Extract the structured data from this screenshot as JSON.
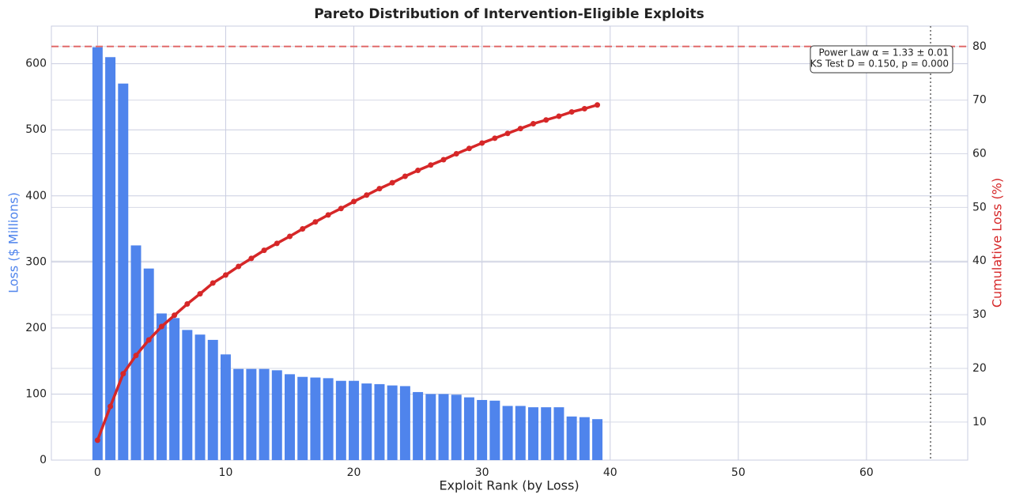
{
  "chart_data": {
    "type": "bar",
    "title": "Pareto Distribution of Intervention-Eligible Exploits",
    "x_label": "Exploit Rank (by Loss)",
    "y_label": "Loss ($ Millions)",
    "y2_label": "Cumulative Loss (%)",
    "x": [
      0,
      1,
      2,
      3,
      4,
      5,
      6,
      7,
      8,
      9,
      10,
      11,
      12,
      13,
      14,
      15,
      16,
      17,
      18,
      19,
      20,
      21,
      22,
      23,
      24,
      25,
      26,
      27,
      28,
      29,
      30,
      31,
      32,
      33,
      34,
      35,
      36,
      37,
      38,
      39
    ],
    "series": [
      {
        "type": "bar",
        "color": "#4f84ec",
        "values": [
          625,
          610,
          570,
          325,
          290,
          222,
          215,
          197,
          190,
          182,
          160,
          138,
          138,
          138,
          136,
          130,
          126,
          125,
          124,
          120,
          120,
          116,
          115,
          113,
          112,
          103,
          100,
          100,
          99,
          95,
          91,
          90,
          82,
          82,
          80,
          80,
          80,
          66,
          65,
          62
        ]
      },
      {
        "type": "line",
        "axis": "y2",
        "color": "#d62728",
        "values": [
          6.6,
          12.9,
          19.0,
          22.4,
          25.3,
          27.8,
          29.9,
          32.0,
          33.9,
          35.9,
          37.4,
          39.0,
          40.5,
          42.0,
          43.3,
          44.6,
          46.0,
          47.3,
          48.6,
          49.8,
          51.1,
          52.3,
          53.5,
          54.6,
          55.8,
          56.9,
          57.9,
          58.9,
          60.0,
          61.0,
          62.0,
          62.9,
          63.8,
          64.7,
          65.6,
          66.3,
          67.0,
          67.8,
          68.4,
          69.1
        ]
      }
    ],
    "xlim": [
      -3.6,
      67.9
    ],
    "xticks": [
      0,
      10,
      20,
      30,
      40,
      50,
      60
    ],
    "ylim": [
      0,
      657
    ],
    "yticks": [
      0,
      100,
      200,
      300,
      400,
      500,
      600
    ],
    "y2lim": [
      2.9,
      83.8
    ],
    "y2ticks": [
      10,
      20,
      30,
      40,
      50,
      60,
      70,
      80
    ],
    "y2_reference": 80,
    "x_reference": 65,
    "grid": true,
    "annotations": [
      "Power Law α = 1.33 ± 0.01",
      "KS Test D = 0.150, p = 0.000"
    ]
  }
}
